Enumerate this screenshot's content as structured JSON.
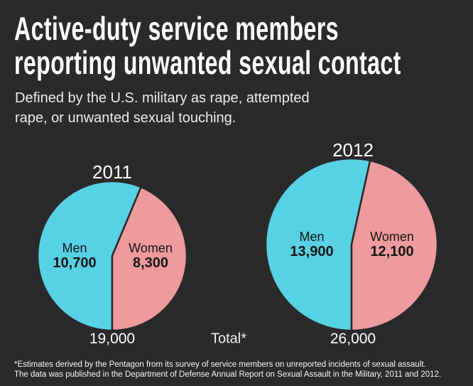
{
  "header": {
    "title_line1": "Active-duty service members",
    "title_line2": "reporting unwanted sexual contact",
    "subtitle_line1": "Defined by the U.S. military as rape, attempted",
    "subtitle_line2": "rape, or unwanted sexual touching."
  },
  "labels": {
    "total_caption": "Total*"
  },
  "footer": {
    "line1": "*Estimates derived by the Pentagon from its survey of service members on unreported incidents of sexual assault.",
    "line2": "The data was published in the Department of Defense Annual Report on Sexual Assault in the Military, 2011 and 2012."
  },
  "colors": {
    "background": "#2a2a2a",
    "men_slice": "#57d1e4",
    "women_slice": "#ef9a9c",
    "pie_text": "#161616",
    "light_text": "#ffffff"
  },
  "chart_data": [
    {
      "type": "pie",
      "year": "2011",
      "series": [
        {
          "name": "Men",
          "value": 10700,
          "display": "10,700",
          "color": "#57d1e4"
        },
        {
          "name": "Women",
          "value": 8300,
          "display": "8,300",
          "color": "#ef9a9c"
        }
      ],
      "total": 19000,
      "total_display": "19,000",
      "layout_hint": "women wedge ends at 6 o'clock; boundary tilted right of 12 o'clock"
    },
    {
      "type": "pie",
      "year": "2012",
      "series": [
        {
          "name": "Men",
          "value": 13900,
          "display": "13,900",
          "color": "#57d1e4"
        },
        {
          "name": "Women",
          "value": 12100,
          "display": "12,100",
          "color": "#ef9a9c"
        }
      ],
      "total": 26000,
      "total_display": "26,000",
      "layout_hint": "women wedge ends at 6 o'clock; boundary tilted right of 12 o'clock"
    }
  ]
}
